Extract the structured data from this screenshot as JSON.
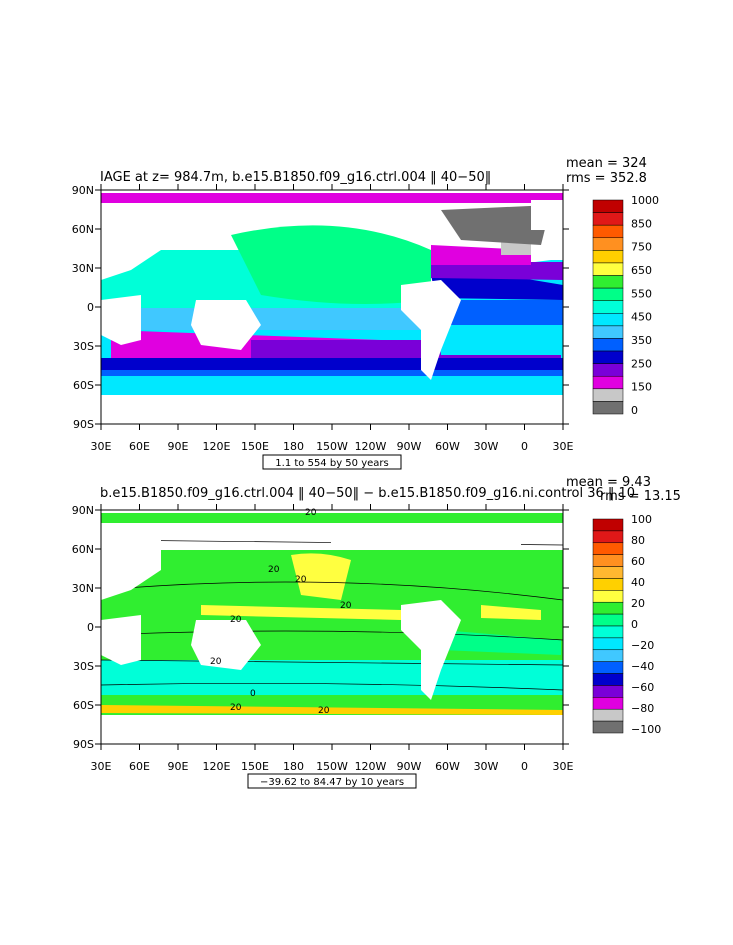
{
  "panels": [
    {
      "title": "IAGE at z= 984.7m, b.e15.B1850.f09_g16.ctrl.004 ‖ 40−50‖",
      "mean": "mean = 324",
      "rms": "rms = 352.8",
      "range_label": "1.1 to 554 by 50 years",
      "colorbar": {
        "labels": [
          "1000",
          "850",
          "750",
          "650",
          "550",
          "450",
          "350",
          "250",
          "150",
          "0"
        ],
        "colors": [
          "#c00000",
          "#e01818",
          "#ff5a00",
          "#ff9020",
          "#ffd000",
          "#ffff40",
          "#30ee30",
          "#00ff88",
          "#00ffd8",
          "#00e8ff",
          "#40c8ff",
          "#0060ff",
          "#0000cc",
          "#7a00d8",
          "#e000e0",
          "#c8c8c8",
          "#707070"
        ]
      }
    },
    {
      "title": "b.e15.B1850.f09_g16.ctrl.004 ‖ 40−50‖  −  b.e15.B1850.f09_g16.ni.control 36 ‖ 10",
      "mean": "mean = 9.43",
      "rms": "rms = 13.15",
      "range_label": "−39.62 to 84.47 by 10 years",
      "colorbar": {
        "labels": [
          "100",
          "80",
          "60",
          "40",
          "20",
          "0",
          "−20",
          "−40",
          "−60",
          "−80",
          "−100"
        ],
        "colors": [
          "#c00000",
          "#e01818",
          "#ff5a00",
          "#ff9020",
          "#ffb830",
          "#ffd000",
          "#ffff40",
          "#30ee30",
          "#00ff88",
          "#00ffd8",
          "#00e8ff",
          "#40c8ff",
          "#0060ff",
          "#0000cc",
          "#7a00d8",
          "#e000e0",
          "#c8c8c8",
          "#707070"
        ]
      },
      "contour_labels": [
        "20",
        "20",
        "20",
        "20",
        "20",
        "20",
        "0",
        "20",
        "20"
      ]
    }
  ],
  "axes": {
    "lat_labels": [
      "90N",
      "60N",
      "30N",
      "0",
      "30S",
      "60S",
      "90S"
    ],
    "lon_labels": [
      "30E",
      "60E",
      "90E",
      "120E",
      "150E",
      "180",
      "150W",
      "120W",
      "90W",
      "60W",
      "30W",
      "0",
      "30E"
    ]
  }
}
